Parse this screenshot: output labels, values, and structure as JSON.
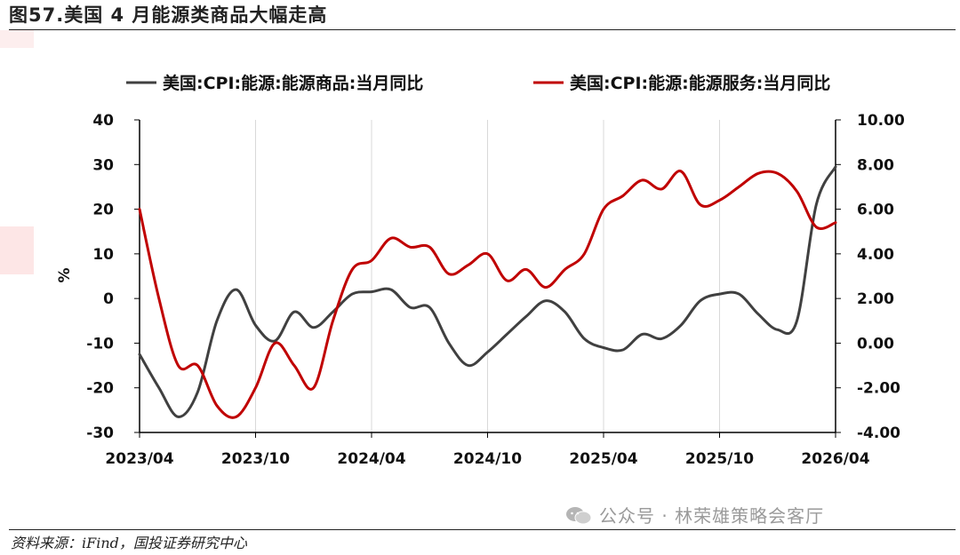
{
  "title": "图57.美国 4 月能源类商品大幅走高",
  "source": "资料来源：iFind，国投证券研究中心",
  "watermark": "公众号 · 林荣雄策略会客厅",
  "colors": {
    "commodities": "#404040",
    "services": "#c00000",
    "grid": "#d9d9d9",
    "axis": "#000000"
  },
  "chart_data": {
    "type": "line",
    "title": "",
    "ylabel_left": "%",
    "ylabel_right": "",
    "ylim_left": [
      -30,
      40
    ],
    "ylim_right": [
      -4,
      10
    ],
    "yticks_left": [
      "40",
      "30",
      "20",
      "10",
      "0",
      "-10",
      "-20",
      "-30"
    ],
    "yticks_right": [
      "10.00",
      "8.00",
      "6.00",
      "4.00",
      "2.00",
      "0.00",
      "-2.00",
      "-4.00"
    ],
    "xticks": [
      "2023/04",
      "2023/10",
      "2024/04",
      "2024/10",
      "2025/04",
      "2025/10",
      "2026/04"
    ],
    "legend_position": "top",
    "grid": "vertical",
    "x": [
      "2023/04",
      "2023/05",
      "2023/06",
      "2023/07",
      "2023/08",
      "2023/09",
      "2023/10",
      "2023/11",
      "2023/12",
      "2024/01",
      "2024/02",
      "2024/03",
      "2024/04",
      "2024/05",
      "2024/06",
      "2024/07",
      "2024/08",
      "2024/09",
      "2024/10",
      "2024/11",
      "2024/12",
      "2025/01",
      "2025/02",
      "2025/03",
      "2025/04",
      "2025/05",
      "2025/06",
      "2025/07",
      "2025/08",
      "2025/09",
      "2025/10",
      "2025/11",
      "2025/12",
      "2026/01",
      "2026/02",
      "2026/03",
      "2026/04"
    ],
    "series": [
      {
        "name": "美国:CPI:能源:能源商品:当月同比",
        "axis": "left",
        "values": [
          -12.5,
          -20,
          -26.5,
          -21,
          -5,
          2,
          -6,
          -9.5,
          -3,
          -6.5,
          -3,
          1,
          1.5,
          2,
          -2,
          -2,
          -10,
          -15,
          -12,
          -8,
          -4,
          -0.5,
          -3,
          -9,
          -11,
          -11.5,
          -8,
          -9,
          -6,
          -0.5,
          1,
          1,
          -3.5,
          -7,
          -5,
          21,
          29.5
        ]
      },
      {
        "name": "美国:CPI:能源:能源服务:当月同比",
        "axis": "right",
        "values": [
          6.0,
          2.0,
          -1.0,
          -1.0,
          -2.8,
          -3.3,
          -2.0,
          0.0,
          -1.0,
          -2.0,
          1.0,
          3.3,
          3.7,
          4.7,
          4.3,
          4.3,
          3.1,
          3.5,
          4.0,
          2.8,
          3.3,
          2.5,
          3.3,
          4.0,
          6.0,
          6.6,
          7.3,
          6.9,
          7.7,
          6.2,
          6.4,
          7.0,
          7.6,
          7.6,
          6.8,
          5.2,
          5.4
        ]
      }
    ]
  }
}
